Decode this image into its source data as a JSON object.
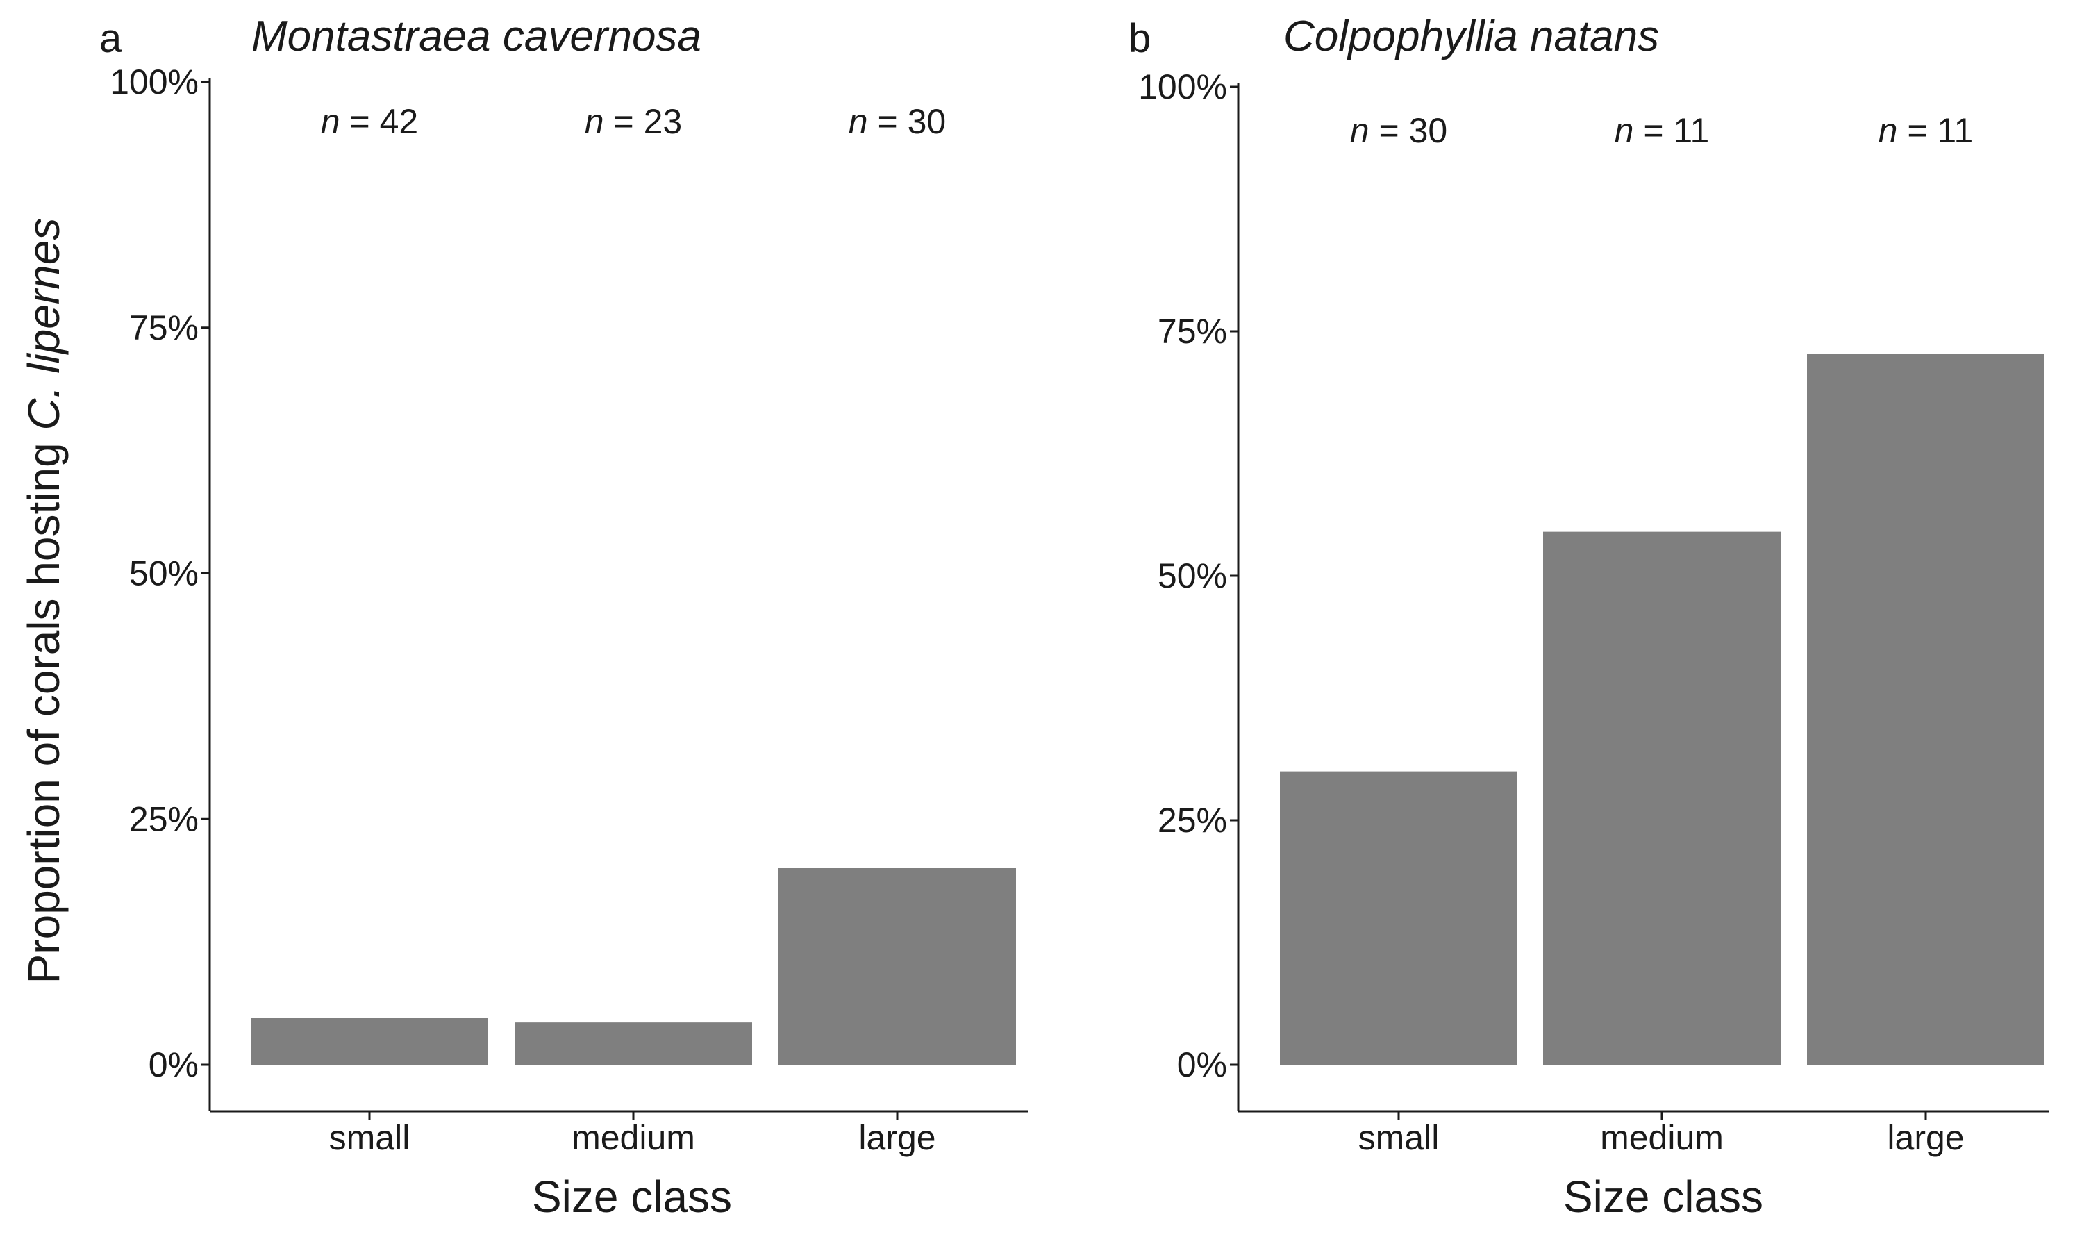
{
  "y_axis_title_prefix": "Proportion of corals hosting ",
  "y_axis_title_species": "C. lipernes",
  "chart_data": [
    {
      "type": "bar",
      "panel_letter": "a",
      "title": "Montastraea cavernosa",
      "xlabel": "Size class",
      "ylabel": "Proportion of corals hosting C. lipernes",
      "categories": [
        "small",
        "medium",
        "large"
      ],
      "values": [
        0.048,
        0.043,
        0.2
      ],
      "sample_sizes": [
        "42",
        "23",
        "30"
      ],
      "ylim": [
        0,
        1
      ],
      "yticks": [
        0,
        0.25,
        0.5,
        0.75,
        1
      ],
      "ytick_labels": [
        "0%",
        "25%",
        "50%",
        "75%",
        "100%"
      ],
      "n_prefix": "n",
      "n_equals": " = ",
      "bar_color": "#7f7f7f",
      "grid": false
    },
    {
      "type": "bar",
      "panel_letter": "b",
      "title": "Colpophyllia natans",
      "xlabel": "Size class",
      "ylabel": "",
      "categories": [
        "small",
        "medium",
        "large"
      ],
      "values": [
        0.3,
        0.545,
        0.727
      ],
      "sample_sizes": [
        "30",
        "11",
        "11"
      ],
      "ylim": [
        0,
        1
      ],
      "yticks": [
        0,
        0.25,
        0.5,
        0.75,
        1
      ],
      "ytick_labels": [
        "0%",
        "25%",
        "50%",
        "75%",
        "100%"
      ],
      "n_prefix": "n",
      "n_equals": " = ",
      "bar_color": "#7f7f7f",
      "grid": false
    }
  ]
}
